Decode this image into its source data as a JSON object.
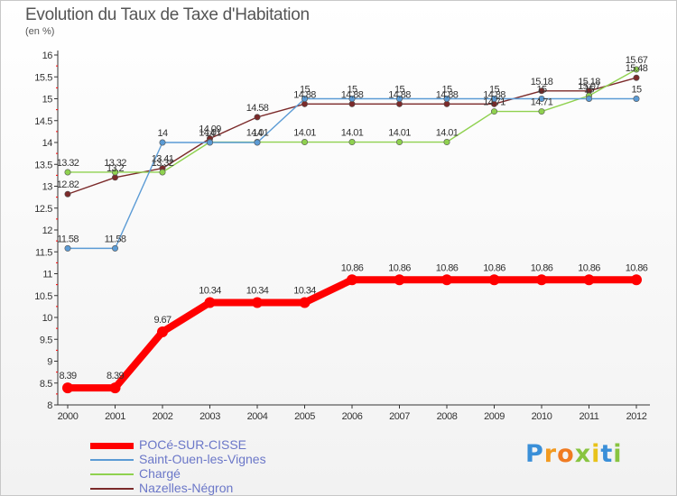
{
  "chart_data": {
    "type": "line",
    "title": "Evolution du Taux de Taxe d'Habitation",
    "unit_label": "(en %)",
    "xlabel": "",
    "ylabel": "",
    "x": [
      "2000",
      "2001",
      "2002",
      "2003",
      "2004",
      "2005",
      "2006",
      "2007",
      "2008",
      "2009",
      "2010",
      "2011",
      "2012"
    ],
    "ylim": [
      8,
      16
    ],
    "yticks": [
      8,
      8.5,
      9,
      9.5,
      10,
      10.5,
      11,
      11.5,
      12,
      12.5,
      13,
      13.5,
      14,
      14.5,
      15,
      15.5,
      16
    ],
    "ytick_labels": [
      "8",
      "8.5",
      "9",
      "9.5",
      "10",
      "10.5",
      "11",
      "11.5",
      "12",
      "12.5",
      "13",
      "13.5",
      "14",
      "14.5",
      "15",
      "15.5",
      "16"
    ],
    "grid": false,
    "legend_position": "bottom-left",
    "series": [
      {
        "name": "POCé-SUR-CISSE",
        "color": "#ff0000",
        "values": [
          8.39,
          8.39,
          9.67,
          10.34,
          10.34,
          10.34,
          10.86,
          10.86,
          10.86,
          10.86,
          10.86,
          10.86,
          10.86
        ],
        "labels": [
          "8.39",
          "8.39",
          "9.67",
          "10.34",
          "10.34",
          "10.34",
          "10.86",
          "10.86",
          "10.86",
          "10.86",
          "10.86",
          "10.86",
          "10.86"
        ]
      },
      {
        "name": "Saint-Ouen-les-Vignes",
        "color": "#5b9bd5",
        "values": [
          11.58,
          11.58,
          14,
          14,
          14,
          15,
          15,
          15,
          15,
          15,
          15,
          15,
          15
        ],
        "labels": [
          "11.58",
          "11.58",
          "14",
          "14",
          "14",
          "15",
          "15",
          "15",
          "15",
          "15",
          "15",
          "15",
          "15"
        ]
      },
      {
        "name": "Chargé",
        "color": "#8fd14f",
        "values": [
          13.32,
          13.32,
          13.32,
          14.01,
          14.01,
          14.01,
          14.01,
          14.01,
          14.01,
          14.71,
          14.71,
          15.07,
          15.67
        ],
        "labels": [
          "13.32",
          "13.32",
          "13.32",
          "14.01",
          "14.01",
          "14.01",
          "14.01",
          "14.01",
          "14.01",
          "14.71",
          "14.71",
          "15.07",
          "15.67"
        ]
      },
      {
        "name": "Nazelles-Négron",
        "color": "#7b2a2a",
        "values": [
          12.82,
          13.2,
          13.41,
          14.09,
          14.58,
          14.88,
          14.88,
          14.88,
          14.88,
          14.88,
          15.18,
          15.18,
          15.48
        ],
        "labels": [
          "12.82",
          "13.2",
          "13.41",
          "14.09",
          "14.58",
          "14.88",
          "14.88",
          "14.88",
          "14.88",
          "14.88",
          "15.18",
          "15.18",
          "15.48"
        ]
      }
    ]
  },
  "brand": {
    "letters": [
      "P",
      "r",
      "o",
      "x",
      "i",
      "t",
      "i"
    ],
    "colors": [
      "#3a8fd8",
      "#f29a1f",
      "#f07b22",
      "#88c440",
      "#e8c21a",
      "#3a8fd8",
      "#88c440"
    ]
  }
}
